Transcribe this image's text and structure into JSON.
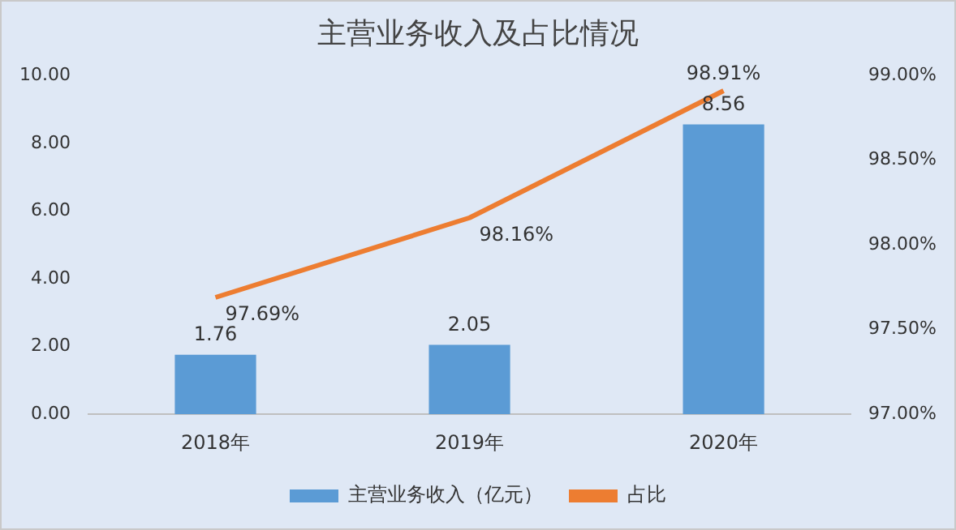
{
  "chart_data": {
    "type": "bar",
    "title": "主营业务收入及占比情况",
    "categories": [
      "2018年",
      "2019年",
      "2020年"
    ],
    "series": [
      {
        "name": "主营业务收入（亿元）",
        "color": "#5b9bd5",
        "values": [
          1.76,
          2.05,
          8.56
        ],
        "value_labels": [
          "1.76",
          "2.05",
          "8.56"
        ]
      },
      {
        "name": "占比",
        "type": "line",
        "axis": "y2",
        "color": "#ed7d31",
        "marker": "none",
        "values": [
          97.69,
          98.16,
          98.91
        ],
        "value_labels": [
          "97.69%",
          "98.16%",
          "98.91%"
        ]
      }
    ],
    "ylim": [
      0,
      10
    ],
    "yticks": [
      {
        "value": 0,
        "label": "0.00"
      },
      {
        "value": 2,
        "label": "2.00"
      },
      {
        "value": 4,
        "label": "4.00"
      },
      {
        "value": 6,
        "label": "6.00"
      },
      {
        "value": 8,
        "label": "8.00"
      },
      {
        "value": 10,
        "label": "10.00"
      }
    ],
    "y2lim": [
      97,
      99
    ],
    "y2ticks": [
      {
        "value": 97,
        "label": "97.00%"
      },
      {
        "value": 97.5,
        "label": "97.50%"
      },
      {
        "value": 98,
        "label": "98.00%"
      },
      {
        "value": 98.5,
        "label": "98.50%"
      },
      {
        "value": 99,
        "label": "99.00%"
      }
    ],
    "grid": false,
    "legend": "bottom"
  }
}
